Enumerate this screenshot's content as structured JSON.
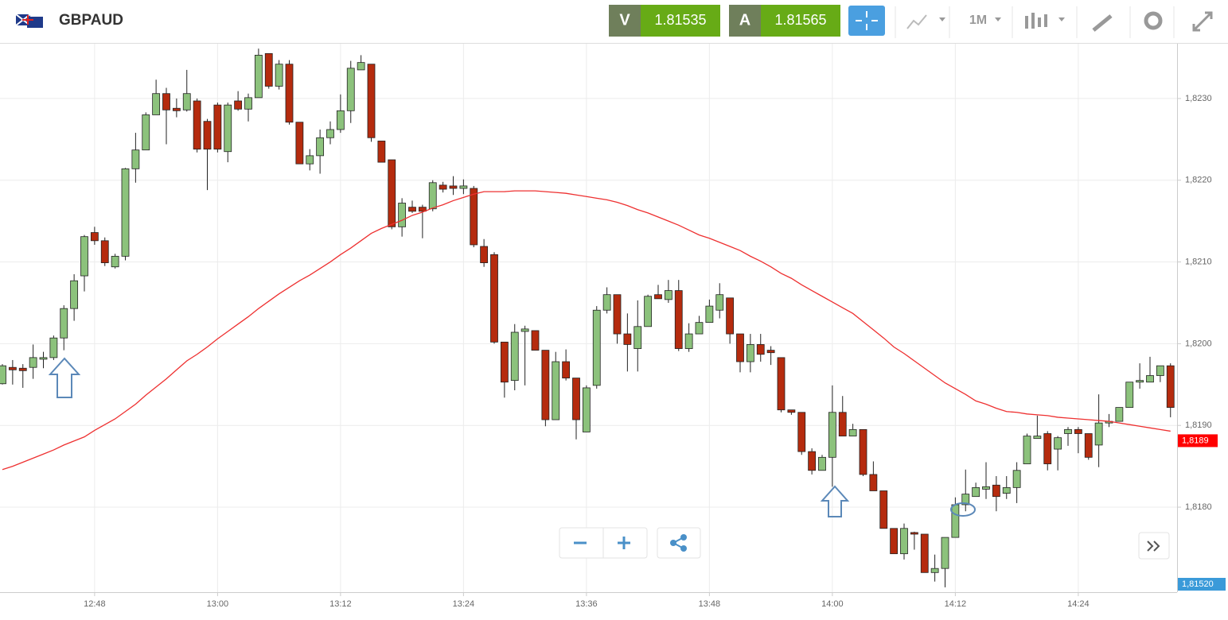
{
  "toolbar": {
    "symbol": "GBPAUD",
    "sell_label": "V",
    "sell_price": 1.81535,
    "buy_label": "A",
    "buy_price": 1.81565,
    "interval": "1M"
  },
  "chart_data": {
    "type": "candlestick",
    "categories": [
      null,
      null,
      null,
      null,
      null,
      null,
      null,
      null,
      null,
      "12:48",
      null,
      null,
      null,
      null,
      null,
      null,
      null,
      null,
      null,
      null,
      null,
      "13:00",
      null,
      null,
      null,
      null,
      null,
      null,
      null,
      null,
      null,
      null,
      null,
      "13:12",
      null,
      null,
      null,
      null,
      null,
      null,
      null,
      null,
      null,
      null,
      null,
      "13:24",
      null,
      null,
      null,
      null,
      null,
      null,
      null,
      null,
      null,
      null,
      null,
      "13:36",
      null,
      null,
      null,
      null,
      null,
      null,
      null,
      null,
      null,
      null,
      null,
      "13:48",
      null,
      null,
      null,
      null,
      null,
      null,
      null,
      null,
      null,
      null,
      null,
      "14:00",
      null,
      null,
      null,
      null,
      null,
      null,
      null,
      null,
      null,
      null,
      null,
      "14:12",
      null,
      null,
      null,
      null,
      null,
      null,
      null,
      null,
      null,
      null,
      null,
      "14:24",
      null,
      null,
      null,
      null,
      null,
      null,
      null,
      null,
      null
    ],
    "open": [
      1.81951,
      1.81971,
      1.8197,
      1.81971,
      1.81981,
      1.81983,
      1.82007,
      1.82043,
      1.82083,
      1.82136,
      1.82126,
      1.82094,
      1.82107,
      1.82214,
      1.82237,
      1.8228,
      1.82306,
      1.82288,
      1.82286,
      1.82297,
      1.82272,
      1.82292,
      1.82235,
      1.82297,
      1.82287,
      1.82301,
      1.82355,
      1.82315,
      1.82342,
      1.82271,
      1.8222,
      1.8223,
      1.82252,
      1.82262,
      1.82285,
      1.82335,
      1.82342,
      1.82248,
      1.82225,
      1.82143,
      1.82167,
      1.82167,
      1.82165,
      1.82194,
      1.82193,
      1.8219,
      1.8219,
      1.82119,
      1.82109,
      1.82002,
      1.81955,
      1.82015,
      1.82016,
      1.81992,
      1.81907,
      1.81978,
      1.81958,
      1.81892,
      1.81949,
      1.82041,
      1.8206,
      1.82012,
      1.81994,
      1.82021,
      1.8206,
      1.82054,
      1.82065,
      1.81994,
      1.82012,
      1.82026,
      1.82041,
      1.82056,
      1.82012,
      1.81978,
      1.81999,
      1.81992,
      1.81983,
      1.81919,
      1.81916,
      1.81868,
      1.81845,
      1.81861,
      1.81916,
      1.81887,
      1.81895,
      1.8184,
      1.8182,
      1.81774,
      1.81743,
      1.81769,
      1.81767,
      1.8172,
      1.81725,
      1.81763,
      1.81803,
      1.81813,
      1.81822,
      1.81827,
      1.81817,
      1.81824,
      1.81853,
      1.81884,
      1.8189,
      1.81871,
      1.8189,
      1.81895,
      1.8189,
      1.81876,
      1.81903,
      1.81905,
      1.81922,
      1.81953,
      1.81953,
      1.81961,
      1.81973
    ],
    "high": [
      1.81975,
      1.8198,
      1.81975,
      1.81999,
      1.8199,
      1.8201,
      1.82047,
      1.82085,
      1.82133,
      1.82143,
      1.8213,
      1.8211,
      1.82215,
      1.82258,
      1.82283,
      1.82323,
      1.82313,
      1.823,
      1.82335,
      1.823,
      1.82275,
      1.82295,
      1.82295,
      1.82309,
      1.82306,
      1.82361,
      1.82355,
      1.82347,
      1.82347,
      1.82271,
      1.82238,
      1.82262,
      1.82272,
      1.82305,
      1.82346,
      1.82353,
      1.82342,
      1.82248,
      1.82225,
      1.82178,
      1.82175,
      1.8217,
      1.822,
      1.82198,
      1.82205,
      1.82201,
      1.82193,
      1.82128,
      1.82112,
      1.82002,
      1.82024,
      1.82022,
      1.82016,
      1.81992,
      1.8199,
      1.81993,
      1.81958,
      1.81949,
      1.82046,
      1.82069,
      1.8206,
      1.82037,
      1.82053,
      1.8206,
      1.82072,
      1.82078,
      1.82078,
      1.82025,
      1.82034,
      1.82054,
      1.82074,
      1.82056,
      1.82012,
      1.82012,
      1.82012,
      1.81997,
      1.81983,
      1.81919,
      1.81916,
      1.81872,
      1.81864,
      1.81949,
      1.81936,
      1.81902,
      1.81895,
      1.81856,
      1.8182,
      1.81774,
      1.8178,
      1.8177,
      1.81767,
      1.81742,
      1.81763,
      1.81812,
      1.81846,
      1.8183,
      1.81855,
      1.81838,
      1.81838,
      1.81855,
      1.8189,
      1.81912,
      1.81893,
      1.81887,
      1.81898,
      1.81898,
      1.8189,
      1.81938,
      1.81914,
      1.81922,
      1.81953,
      1.81976,
      1.81984,
      1.81973,
      1.81976
    ],
    "low": [
      1.8195,
      1.8195,
      1.81946,
      1.81957,
      1.8197,
      1.8198,
      1.81992,
      1.82028,
      1.82064,
      1.82121,
      1.82095,
      1.82092,
      1.82102,
      1.82197,
      1.82237,
      1.8228,
      1.82244,
      1.82277,
      1.82284,
      1.82234,
      1.82188,
      1.82234,
      1.82222,
      1.82285,
      1.82272,
      1.82301,
      1.82312,
      1.82311,
      1.82268,
      1.8222,
      1.82212,
      1.82208,
      1.82244,
      1.82258,
      1.8227,
      1.82335,
      1.82247,
      1.82222,
      1.8214,
      1.82131,
      1.8216,
      1.82129,
      1.82162,
      1.82185,
      1.82182,
      1.82183,
      1.82118,
      1.82094,
      1.82,
      1.81934,
      1.81943,
      1.81949,
      1.81992,
      1.81899,
      1.81907,
      1.81955,
      1.81883,
      1.81892,
      1.81945,
      1.82037,
      1.82,
      1.81966,
      1.81966,
      1.82021,
      1.82055,
      1.8205,
      1.81991,
      1.8199,
      1.82012,
      1.82026,
      1.82031,
      1.82,
      1.81965,
      1.81965,
      1.81978,
      1.81974,
      1.81916,
      1.81913,
      1.81864,
      1.8184,
      1.81845,
      1.81825,
      1.81887,
      1.81887,
      1.81838,
      1.8182,
      1.81774,
      1.81743,
      1.81736,
      1.81748,
      1.8172,
      1.81709,
      1.81702,
      1.81763,
      1.81795,
      1.81813,
      1.8181,
      1.81795,
      1.8181,
      1.81805,
      1.81853,
      1.81884,
      1.81845,
      1.81845,
      1.81875,
      1.81866,
      1.81858,
      1.81849,
      1.81898,
      1.81905,
      1.81922,
      1.81945,
      1.81953,
      1.81953,
      1.8191
    ],
    "close": [
      1.81973,
      1.81968,
      1.81967,
      1.81983,
      1.81983,
      1.82007,
      1.82043,
      1.82077,
      1.82131,
      1.82126,
      1.82099,
      1.82107,
      1.82214,
      1.82237,
      1.8228,
      1.82306,
      1.82286,
      1.82285,
      1.82306,
      1.82238,
      1.82238,
      1.82238,
      1.82292,
      1.82287,
      1.82301,
      1.82353,
      1.82315,
      1.82342,
      1.82271,
      1.8222,
      1.8223,
      1.82252,
      1.82262,
      1.82285,
      1.82337,
      1.82344,
      1.82252,
      1.82222,
      1.82143,
      1.82172,
      1.82162,
      1.82162,
      1.82197,
      1.82189,
      1.8219,
      1.82193,
      1.82121,
      1.82099,
      1.82002,
      1.81953,
      1.82014,
      1.82018,
      1.81992,
      1.81907,
      1.81978,
      1.81958,
      1.81907,
      1.81946,
      1.82041,
      1.8206,
      1.82012,
      1.81999,
      1.82021,
      1.82058,
      1.82055,
      1.82065,
      1.81994,
      1.82012,
      1.82026,
      1.82046,
      1.8206,
      1.82012,
      1.81978,
      1.81999,
      1.81987,
      1.81989,
      1.81919,
      1.81916,
      1.81868,
      1.81845,
      1.81861,
      1.81916,
      1.81887,
      1.81895,
      1.8184,
      1.8182,
      1.81774,
      1.81743,
      1.81774,
      1.81767,
      1.8172,
      1.81725,
      1.81763,
      1.81803,
      1.81816,
      1.81824,
      1.81825,
      1.81813,
      1.81824,
      1.81845,
      1.81887,
      1.81887,
      1.81853,
      1.81885,
      1.81895,
      1.8189,
      1.81861,
      1.81903,
      1.81905,
      1.81922,
      1.81953,
      1.81955,
      1.81961,
      1.81973,
      1.81922
    ],
    "up_color": "#8cc27c",
    "down_color": "#b52b0e",
    "ma": {
      "color": "#ee3030",
      "label": "1,8189",
      "values": [
        1.81846,
        1.8185,
        1.81855,
        1.8186,
        1.81865,
        1.8187,
        1.81876,
        1.81881,
        1.81886,
        1.81894,
        1.81901,
        1.81908,
        1.81917,
        1.81926,
        1.81937,
        1.81947,
        1.81957,
        1.81968,
        1.81979,
        1.81987,
        1.81996,
        1.82006,
        1.82015,
        1.82024,
        1.82033,
        1.82043,
        1.82052,
        1.82061,
        1.82069,
        1.82077,
        1.82084,
        1.82092,
        1.821,
        1.82109,
        1.82117,
        1.82126,
        1.82135,
        1.82141,
        1.82146,
        1.82151,
        1.82157,
        1.82161,
        1.82166,
        1.8217,
        1.82175,
        1.82179,
        1.82183,
        1.82186,
        1.82186,
        1.82186,
        1.82187,
        1.82187,
        1.82187,
        1.82186,
        1.82185,
        1.82184,
        1.82182,
        1.8218,
        1.82178,
        1.82176,
        1.82173,
        1.82169,
        1.82164,
        1.8216,
        1.82155,
        1.8215,
        1.82145,
        1.82139,
        1.82133,
        1.82129,
        1.82124,
        1.82119,
        1.82114,
        1.82107,
        1.82101,
        1.82094,
        1.82086,
        1.8208,
        1.82072,
        1.82065,
        1.82058,
        1.82051,
        1.82044,
        1.82037,
        1.82027,
        1.82017,
        1.82007,
        1.81996,
        1.81988,
        1.81979,
        1.8197,
        1.81961,
        1.81952,
        1.81945,
        1.81938,
        1.8193,
        1.81926,
        1.81921,
        1.81917,
        1.81916,
        1.81914,
        1.81913,
        1.81912,
        1.8191,
        1.81909,
        1.81908,
        1.81907,
        1.81906,
        1.81905,
        1.81903,
        1.81901,
        1.81899,
        1.81897,
        1.81895,
        1.81893
      ]
    },
    "price_tag": "1,81520",
    "ylim": [
      1.81696,
      1.82367
    ],
    "yticks": [
      {
        "value": 1.818,
        "label": "1,8180"
      },
      {
        "value": 1.819,
        "label": "1,8190"
      },
      {
        "value": 1.82,
        "label": "1,8200"
      },
      {
        "value": 1.821,
        "label": "1,8210"
      },
      {
        "value": 1.822,
        "label": "1,8220"
      },
      {
        "value": 1.823,
        "label": "1,8230"
      }
    ],
    "grid": true
  }
}
